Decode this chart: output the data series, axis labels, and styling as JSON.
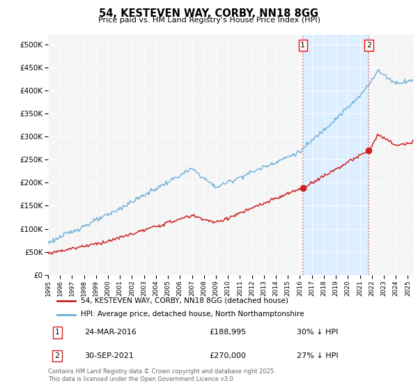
{
  "title": "54, KESTEVEN WAY, CORBY, NN18 8GG",
  "subtitle": "Price paid vs. HM Land Registry's House Price Index (HPI)",
  "ylim": [
    0,
    520000
  ],
  "yticks": [
    0,
    50000,
    100000,
    150000,
    200000,
    250000,
    300000,
    350000,
    400000,
    450000,
    500000
  ],
  "ytick_labels": [
    "£0",
    "£50K",
    "£100K",
    "£150K",
    "£200K",
    "£250K",
    "£300K",
    "£350K",
    "£400K",
    "£450K",
    "£500K"
  ],
  "hpi_color": "#6baed6",
  "price_color": "#cc2222",
  "vline_color": "#e08080",
  "span_color": "#ddeeff",
  "sale1_year": 2016.25,
  "sale1_price": 188995,
  "sale2_year": 2021.75,
  "sale2_price": 270000,
  "legend_house": "54, KESTEVEN WAY, CORBY, NN18 8GG (detached house)",
  "legend_hpi": "HPI: Average price, detached house, North Northamptonshire",
  "table_row1": [
    "1",
    "24-MAR-2016",
    "£188,995",
    "30% ↓ HPI"
  ],
  "table_row2": [
    "2",
    "30-SEP-2021",
    "£270,000",
    "27% ↓ HPI"
  ],
  "footer": "Contains HM Land Registry data © Crown copyright and database right 2025.\nThis data is licensed under the Open Government Licence v3.0.",
  "bg_color": "#ffffff",
  "plot_bg": "#f5f5f5"
}
